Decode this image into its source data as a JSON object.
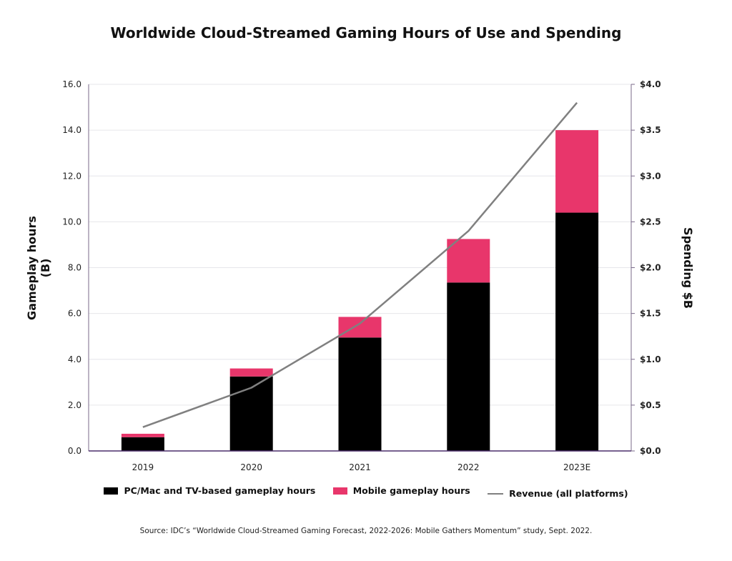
{
  "chart_data": {
    "type": "bar",
    "title": "Worldwide Cloud-Streamed Gaming Hours of Use and Spending",
    "categories": [
      "2019",
      "2020",
      "2021",
      "2022",
      "2023E"
    ],
    "series": [
      {
        "name": "PC/Mac and TV-based gameplay hours",
        "type": "bar",
        "stacked": true,
        "axis": "left",
        "color": "#000000",
        "values": [
          0.6,
          3.25,
          4.95,
          7.35,
          10.4
        ]
      },
      {
        "name": "Mobile gameplay hours",
        "type": "bar",
        "stacked": true,
        "axis": "left",
        "color": "#e8366b",
        "values": [
          0.15,
          0.35,
          0.9,
          1.9,
          3.6
        ]
      },
      {
        "name": "Revenue (all platforms)",
        "type": "line",
        "axis": "right",
        "color": "#808080",
        "values": [
          0.26,
          0.69,
          1.39,
          2.4,
          3.8
        ]
      }
    ],
    "y_left": {
      "label": "Gameplay hours\n(B)",
      "ylim": [
        0,
        16
      ],
      "ticks": [
        "0.0",
        "2.0",
        "4.0",
        "6.0",
        "8.0",
        "10.0",
        "12.0",
        "14.0",
        "16.0"
      ]
    },
    "y_right": {
      "label": "Spending $B",
      "ylim": [
        0,
        4
      ],
      "ticks": [
        "$0.0",
        "$0.5",
        "$1.0",
        "$1.5",
        "$2.0",
        "$2.5",
        "$3.0",
        "$3.5",
        "$4.0"
      ]
    },
    "grid": true,
    "legend_position": "bottom"
  },
  "legend": {
    "pc": "PC/Mac and TV-based gameplay hours",
    "mobile": "Mobile gameplay hours",
    "revenue": "Revenue (all platforms)"
  },
  "source": "Source: IDC’s “Worldwide Cloud-Streamed Gaming Forecast, 2022-2026: Mobile Gathers Momentum” study,  Sept. 2022."
}
